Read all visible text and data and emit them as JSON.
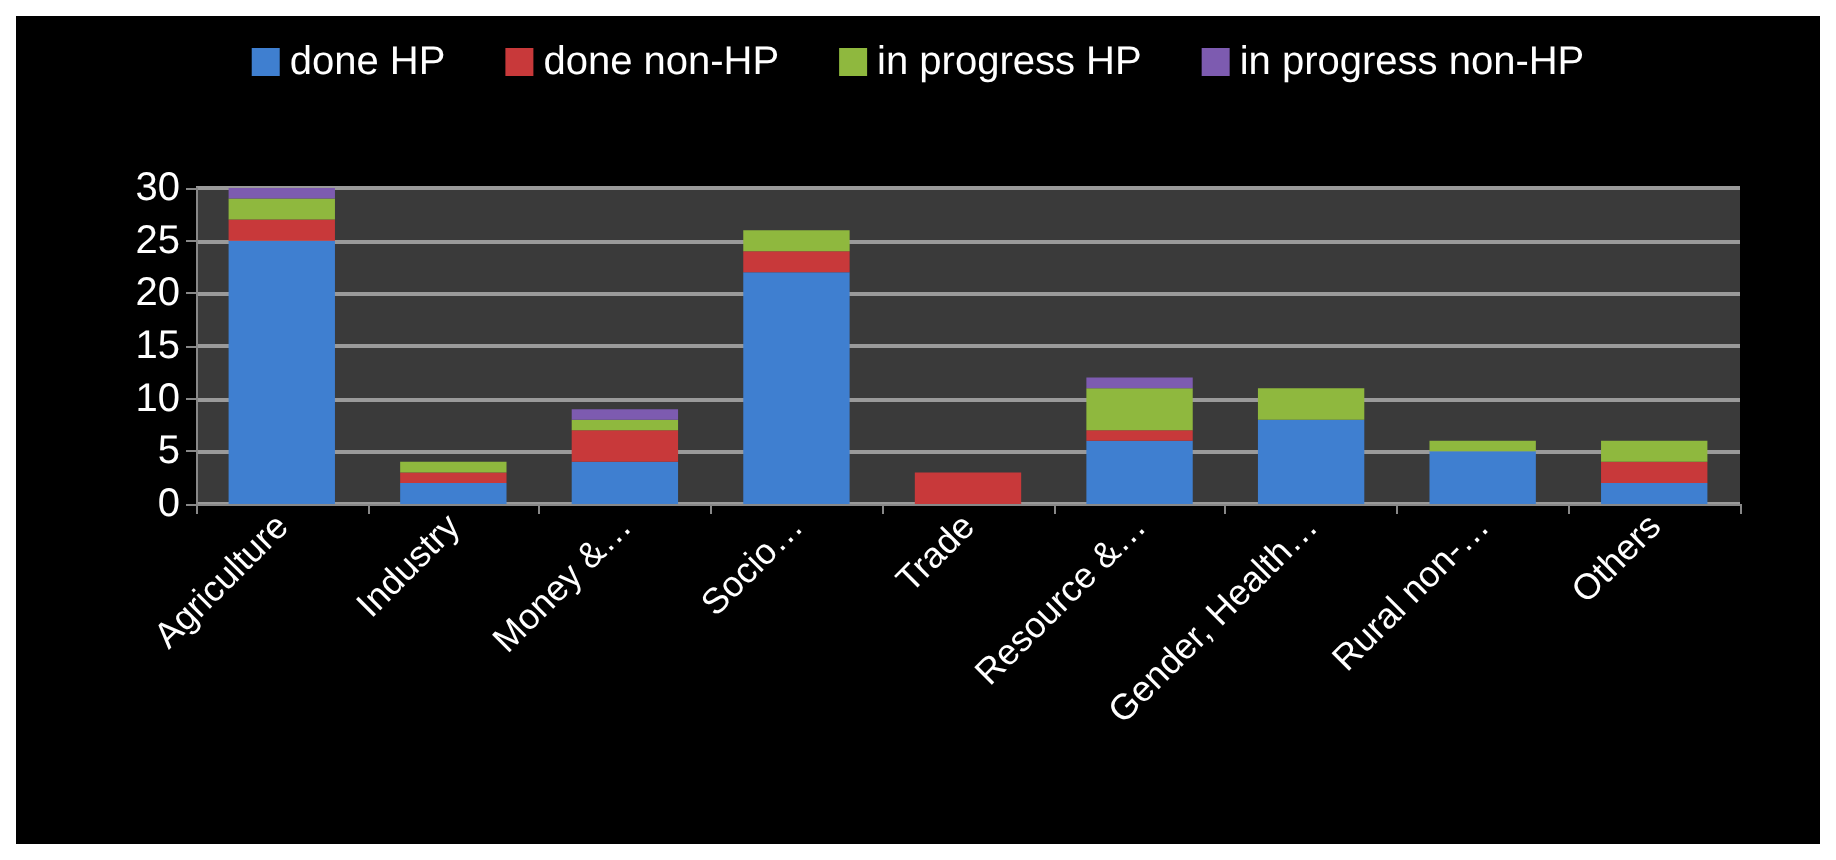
{
  "chart_data": {
    "type": "bar",
    "stacked": true,
    "categories": [
      "Agriculture",
      "Industry",
      "Money &…",
      "Socio…",
      "Trade",
      "Resource &…",
      "Gender, Health…",
      "Rural non-…",
      "Others"
    ],
    "series": [
      {
        "name": "done HP",
        "color": "#3f7fd0",
        "values": [
          25,
          2,
          4,
          22,
          0,
          6,
          8,
          5,
          2
        ]
      },
      {
        "name": "done non-HP",
        "color": "#c8393a",
        "values": [
          2,
          1,
          3,
          2,
          3,
          1,
          0,
          0,
          2
        ]
      },
      {
        "name": "in progress HP",
        "color": "#8fb83e",
        "values": [
          2,
          1,
          1,
          2,
          0,
          4,
          3,
          1,
          2
        ]
      },
      {
        "name": "in progress non-HP",
        "color": "#7d5bb0",
        "values": [
          1,
          0,
          1,
          0,
          0,
          1,
          0,
          0,
          0
        ]
      }
    ],
    "ylim": [
      0,
      30
    ],
    "yticks": [
      0,
      5,
      10,
      15,
      20,
      25,
      30
    ],
    "grid": "y",
    "legend": "top"
  }
}
